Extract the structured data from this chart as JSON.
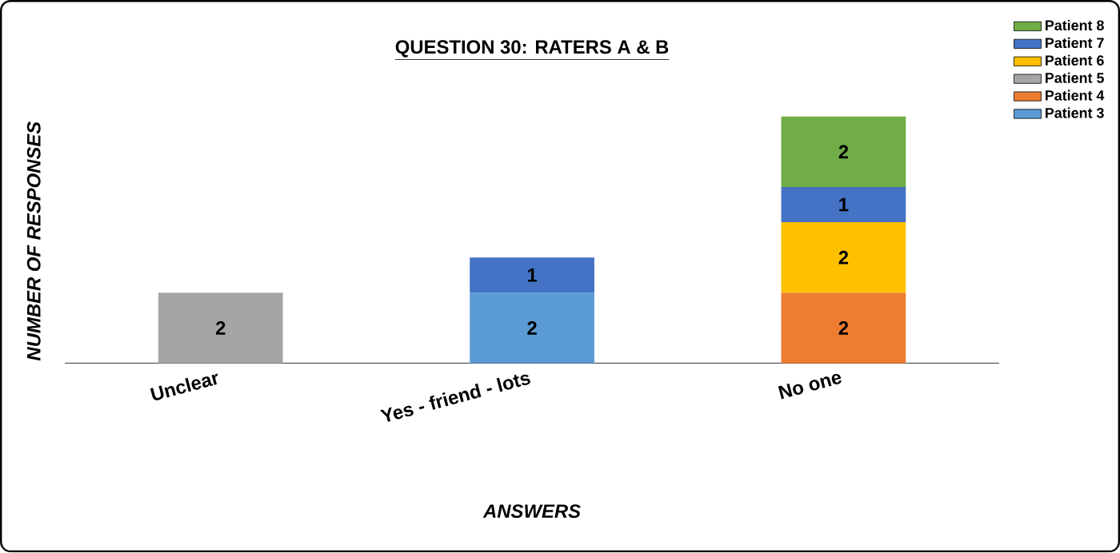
{
  "chart_data": {
    "type": "bar",
    "title": "QUESTION 30: RATERS A & B",
    "xlabel": "ANSWERS",
    "ylabel": "NUMBER OF RESPONSES",
    "categories": [
      "Unclear",
      "Yes - friend - lots",
      "No one"
    ],
    "stacked": true,
    "tick_labels": "x",
    "data_labels": true,
    "legend": "top right",
    "series": [
      {
        "name": "Patient 3",
        "color": "#5b9bd5",
        "values": [
          null,
          2,
          null
        ]
      },
      {
        "name": "Patient 4",
        "color": "#ed7d31",
        "values": [
          null,
          null,
          2
        ]
      },
      {
        "name": "Patient 5",
        "color": "#a5a5a5",
        "values": [
          2,
          null,
          null
        ]
      },
      {
        "name": "Patient 6",
        "color": "#ffc000",
        "values": [
          null,
          null,
          2
        ]
      },
      {
        "name": "Patient 7",
        "color": "#4472c4",
        "values": [
          null,
          1,
          1
        ]
      },
      {
        "name": "Patient 8",
        "color": "#70ad47",
        "values": [
          null,
          null,
          2
        ]
      }
    ]
  }
}
